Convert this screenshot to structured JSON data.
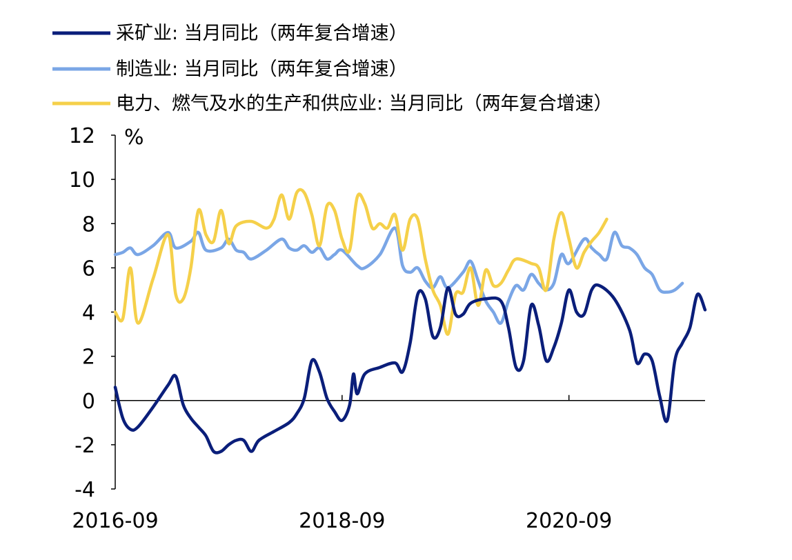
{
  "chart_data": {
    "type": "line",
    "ylabel": "%",
    "ylim": [
      -4,
      12
    ],
    "yticks": [
      -4,
      -2,
      0,
      2,
      4,
      6,
      8,
      10,
      12
    ],
    "xlim": [
      0,
      78
    ],
    "xticks": [
      {
        "label": "2016-09",
        "x": 0
      },
      {
        "label": "2018-09",
        "x": 30
      },
      {
        "label": "2020-09",
        "x": 60
      }
    ],
    "grid": false,
    "legend_position": "top",
    "series": [
      {
        "name": "采矿业: 当月同比（两年复合增速）",
        "color": "#0a1e7a",
        "points": [
          [
            0,
            0.6
          ],
          [
            1,
            -0.8
          ],
          [
            2,
            -1.3
          ],
          [
            3,
            -1.2
          ],
          [
            5,
            -0.3
          ],
          [
            7,
            0.7
          ],
          [
            8,
            1.1
          ],
          [
            9,
            -0.2
          ],
          [
            10,
            -0.8
          ],
          [
            11,
            -1.2
          ],
          [
            12,
            -1.6
          ],
          [
            13,
            -2.3
          ],
          [
            14,
            -2.3
          ],
          [
            15,
            -2.0
          ],
          [
            16,
            -1.8
          ],
          [
            17,
            -1.8
          ],
          [
            18,
            -2.3
          ],
          [
            19,
            -1.8
          ],
          [
            21,
            -1.4
          ],
          [
            23,
            -1.0
          ],
          [
            24,
            -0.6
          ],
          [
            25,
            0.1
          ],
          [
            26,
            1.8
          ],
          [
            27,
            1.3
          ],
          [
            28,
            0.1
          ],
          [
            29,
            -0.5
          ],
          [
            30,
            -0.9
          ],
          [
            31,
            -0.2
          ],
          [
            31.5,
            1.2
          ],
          [
            32,
            0.3
          ],
          [
            33,
            1.2
          ],
          [
            35,
            1.5
          ],
          [
            37,
            1.7
          ],
          [
            38,
            1.3
          ],
          [
            39,
            2.6
          ],
          [
            40,
            4.8
          ],
          [
            41,
            4.6
          ],
          [
            42,
            2.9
          ],
          [
            43,
            3.3
          ],
          [
            44,
            5.1
          ],
          [
            45,
            3.9
          ],
          [
            46,
            3.9
          ],
          [
            47,
            4.4
          ],
          [
            49,
            4.6
          ],
          [
            51,
            4.5
          ],
          [
            52,
            3.3
          ],
          [
            53,
            1.5
          ],
          [
            54,
            1.8
          ],
          [
            55,
            4.3
          ],
          [
            56,
            3.4
          ],
          [
            57,
            1.8
          ],
          [
            58,
            2.4
          ],
          [
            59,
            3.5
          ],
          [
            60,
            5.0
          ],
          [
            61,
            4.0
          ],
          [
            62,
            3.9
          ],
          [
            63,
            5.0
          ],
          [
            64,
            5.2
          ],
          [
            66,
            4.6
          ],
          [
            68,
            3.2
          ],
          [
            69,
            1.7
          ],
          [
            70,
            2.1
          ],
          [
            71,
            1.8
          ],
          [
            72,
            0.2
          ],
          [
            73,
            -0.9
          ],
          [
            74,
            1.8
          ],
          [
            75,
            2.6
          ],
          [
            76,
            3.3
          ],
          [
            77,
            4.8
          ],
          [
            78,
            4.1
          ]
        ]
      },
      {
        "name": "制造业: 当月同比（两年复合增速）",
        "color": "#7aa6e6",
        "points": [
          [
            0,
            6.6
          ],
          [
            1,
            6.7
          ],
          [
            2,
            6.9
          ],
          [
            3,
            6.6
          ],
          [
            5,
            7.0
          ],
          [
            7,
            7.6
          ],
          [
            8,
            6.9
          ],
          [
            10,
            7.2
          ],
          [
            11,
            7.6
          ],
          [
            12,
            6.8
          ],
          [
            14,
            6.9
          ],
          [
            15,
            7.3
          ],
          [
            16,
            6.8
          ],
          [
            17,
            6.7
          ],
          [
            18,
            6.4
          ],
          [
            20,
            6.8
          ],
          [
            22,
            7.3
          ],
          [
            23,
            6.9
          ],
          [
            24,
            6.8
          ],
          [
            25,
            7.0
          ],
          [
            26,
            6.7
          ],
          [
            27,
            6.9
          ],
          [
            28,
            6.4
          ],
          [
            29,
            6.6
          ],
          [
            30,
            6.8
          ],
          [
            32,
            6.1
          ],
          [
            33,
            6.0
          ],
          [
            35,
            6.6
          ],
          [
            37,
            7.8
          ],
          [
            38,
            6.1
          ],
          [
            39,
            5.8
          ],
          [
            40,
            6.0
          ],
          [
            41,
            5.4
          ],
          [
            42,
            5.1
          ],
          [
            43,
            5.6
          ],
          [
            44,
            5.1
          ],
          [
            46,
            5.8
          ],
          [
            47,
            6.3
          ],
          [
            48,
            5.4
          ],
          [
            49,
            4.5
          ],
          [
            50,
            4.0
          ],
          [
            51,
            3.5
          ],
          [
            52,
            4.5
          ],
          [
            53,
            5.2
          ],
          [
            54,
            5.0
          ],
          [
            55,
            5.7
          ],
          [
            56,
            5.3
          ],
          [
            57,
            5.0
          ],
          [
            58,
            5.3
          ],
          [
            59,
            6.6
          ],
          [
            60,
            6.2
          ],
          [
            62,
            7.3
          ],
          [
            63,
            6.9
          ],
          [
            64,
            6.6
          ],
          [
            65,
            6.4
          ],
          [
            66,
            7.6
          ],
          [
            67,
            7.0
          ],
          [
            68,
            6.9
          ],
          [
            69,
            6.6
          ],
          [
            70,
            6.0
          ],
          [
            71,
            5.7
          ],
          [
            72,
            5.0
          ],
          [
            73,
            4.9
          ],
          [
            74,
            5.0
          ],
          [
            75,
            5.3
          ]
        ]
      },
      {
        "name": "电力、燃气及水的生产和供应业: 当月同比（两年复合增速）",
        "color": "#f5d04a",
        "points": [
          [
            0,
            4.0
          ],
          [
            1,
            3.7
          ],
          [
            2,
            6.0
          ],
          [
            3,
            3.5
          ],
          [
            5,
            5.5
          ],
          [
            7,
            7.5
          ],
          [
            8,
            4.8
          ],
          [
            9,
            4.6
          ],
          [
            10,
            6.0
          ],
          [
            11,
            8.6
          ],
          [
            12,
            7.5
          ],
          [
            13,
            7.2
          ],
          [
            14,
            8.6
          ],
          [
            15,
            7.1
          ],
          [
            16,
            7.9
          ],
          [
            18,
            8.1
          ],
          [
            20,
            7.8
          ],
          [
            21,
            8.2
          ],
          [
            22,
            9.3
          ],
          [
            23,
            8.2
          ],
          [
            24,
            9.4
          ],
          [
            25,
            9.4
          ],
          [
            26,
            8.4
          ],
          [
            27,
            7.0
          ],
          [
            28,
            8.8
          ],
          [
            29,
            8.6
          ],
          [
            30,
            7.3
          ],
          [
            31,
            6.8
          ],
          [
            32,
            9.2
          ],
          [
            33,
            8.9
          ],
          [
            34,
            7.8
          ],
          [
            35,
            8.0
          ],
          [
            36,
            7.8
          ],
          [
            37,
            8.4
          ],
          [
            38,
            6.8
          ],
          [
            39,
            8.2
          ],
          [
            40,
            8.2
          ],
          [
            41,
            6.4
          ],
          [
            42,
            5.0
          ],
          [
            43,
            4.3
          ],
          [
            44,
            3.0
          ],
          [
            45,
            4.8
          ],
          [
            46,
            4.9
          ],
          [
            47,
            6.0
          ],
          [
            48,
            4.3
          ],
          [
            49,
            5.9
          ],
          [
            50,
            5.2
          ],
          [
            51,
            5.3
          ],
          [
            52,
            5.9
          ],
          [
            53,
            6.4
          ],
          [
            55,
            6.2
          ],
          [
            56,
            6.0
          ],
          [
            57,
            5.0
          ],
          [
            58,
            7.3
          ],
          [
            59,
            8.5
          ],
          [
            60,
            7.3
          ],
          [
            61,
            6.0
          ],
          [
            62,
            6.7
          ],
          [
            63,
            7.2
          ],
          [
            64,
            7.6
          ],
          [
            65,
            8.2
          ]
        ]
      }
    ]
  }
}
